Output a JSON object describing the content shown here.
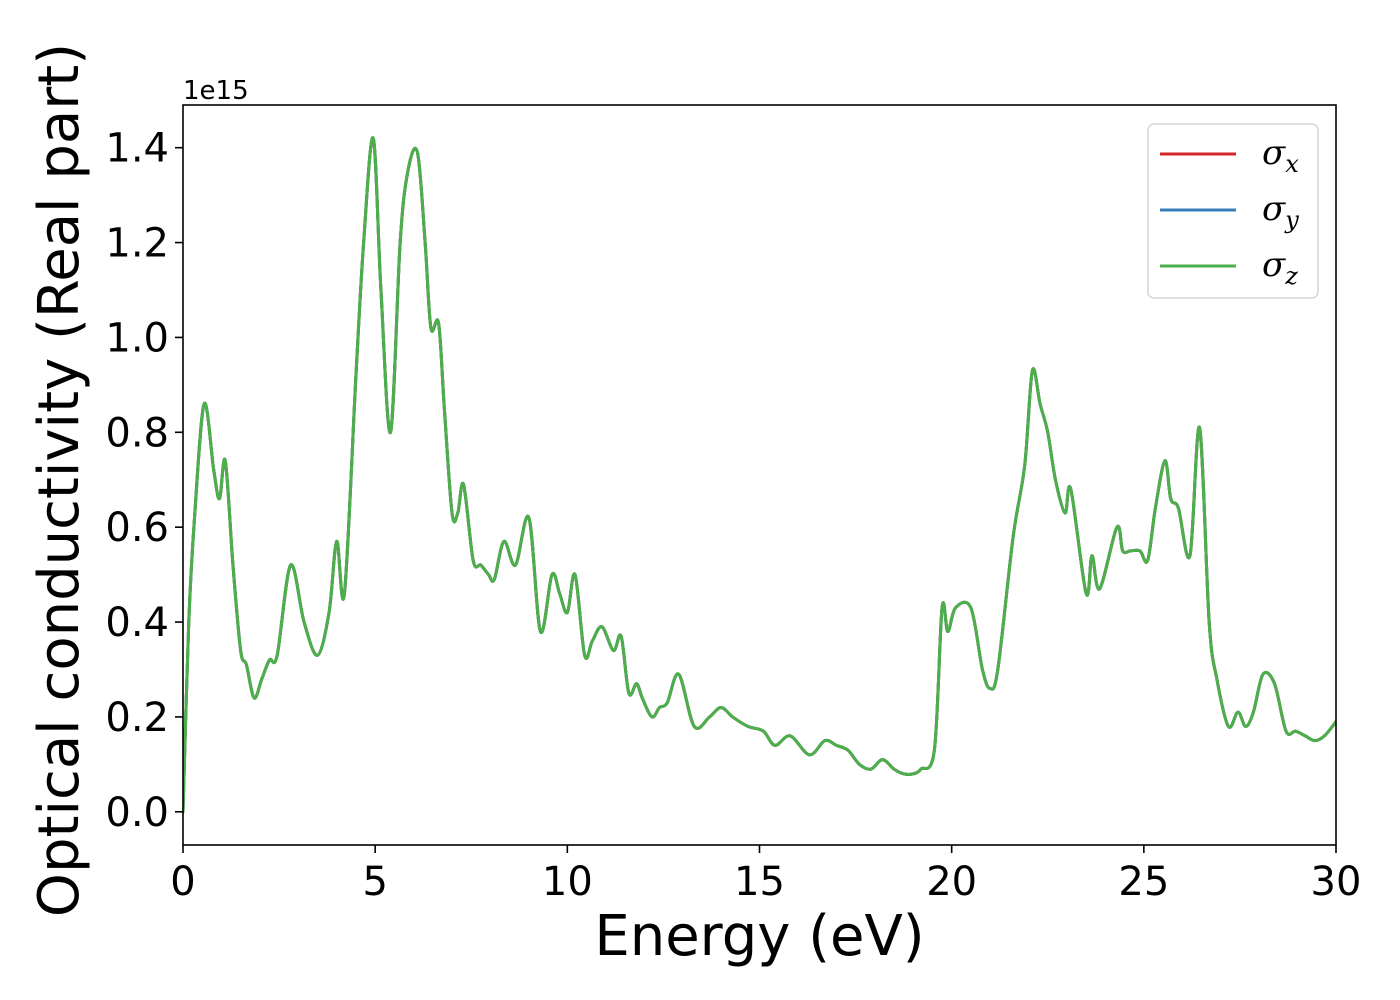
{
  "chart_data": {
    "type": "line",
    "xlabel": "Energy (eV)",
    "ylabel": "Optical conductivity (Real part)",
    "y_offset_label": "1e15",
    "xlim": [
      0,
      30
    ],
    "ylim": [
      -0.07,
      1.49
    ],
    "x_ticks": [
      0,
      5,
      10,
      15,
      20,
      25,
      30
    ],
    "y_ticks": [
      0.0,
      0.2,
      0.4,
      0.6,
      0.8,
      1.0,
      1.2,
      1.4
    ],
    "y_tick_labels": [
      "0.0",
      "0.2",
      "0.4",
      "0.6",
      "0.8",
      "1.0",
      "1.2",
      "1.4"
    ],
    "grid": false,
    "legend_position": "top-right",
    "x": [
      0,
      0.15,
      0.3,
      0.55,
      0.8,
      0.95,
      1.1,
      1.3,
      1.5,
      1.65,
      1.85,
      2.05,
      2.25,
      2.45,
      2.8,
      3.15,
      3.5,
      3.8,
      4.0,
      4.2,
      4.5,
      4.7,
      4.95,
      5.15,
      5.4,
      5.65,
      5.85,
      6.1,
      6.3,
      6.45,
      6.65,
      6.8,
      7.0,
      7.15,
      7.3,
      7.55,
      7.75,
      7.95,
      8.1,
      8.35,
      8.65,
      9.0,
      9.3,
      9.6,
      9.8,
      10.0,
      10.2,
      10.45,
      10.65,
      10.9,
      11.2,
      11.4,
      11.6,
      11.8,
      11.95,
      12.2,
      12.4,
      12.6,
      12.9,
      13.3,
      13.7,
      14.0,
      14.3,
      14.7,
      15.1,
      15.4,
      15.8,
      16.3,
      16.7,
      17.0,
      17.3,
      17.6,
      17.9,
      18.2,
      18.5,
      18.75,
      19.0,
      19.2,
      19.55,
      19.75,
      19.9,
      20.1,
      20.5,
      20.8,
      21.0,
      21.2,
      21.6,
      21.9,
      22.1,
      22.3,
      22.5,
      22.7,
      22.95,
      23.1,
      23.5,
      23.65,
      23.85,
      24.3,
      24.45,
      24.65,
      24.9,
      25.1,
      25.3,
      25.55,
      25.7,
      25.9,
      26.2,
      26.45,
      26.7,
      26.9,
      27.2,
      27.45,
      27.65,
      27.85,
      28.1,
      28.4,
      28.7,
      28.95,
      29.2,
      29.45,
      29.7,
      30.0
    ],
    "series": [
      {
        "name": "σ_x",
        "color": "#d62728",
        "values": [
          0.0,
          0.4,
          0.62,
          0.86,
          0.72,
          0.66,
          0.74,
          0.52,
          0.34,
          0.31,
          0.24,
          0.28,
          0.32,
          0.33,
          0.52,
          0.4,
          0.33,
          0.42,
          0.57,
          0.46,
          0.92,
          1.2,
          1.42,
          1.1,
          0.8,
          1.2,
          1.35,
          1.39,
          1.2,
          1.02,
          1.03,
          0.85,
          0.63,
          0.63,
          0.69,
          0.53,
          0.52,
          0.5,
          0.49,
          0.57,
          0.52,
          0.62,
          0.38,
          0.5,
          0.46,
          0.42,
          0.5,
          0.33,
          0.36,
          0.39,
          0.34,
          0.37,
          0.25,
          0.27,
          0.24,
          0.2,
          0.22,
          0.23,
          0.29,
          0.18,
          0.2,
          0.22,
          0.2,
          0.18,
          0.17,
          0.14,
          0.16,
          0.12,
          0.15,
          0.14,
          0.13,
          0.1,
          0.09,
          0.11,
          0.09,
          0.08,
          0.08,
          0.09,
          0.13,
          0.43,
          0.38,
          0.43,
          0.43,
          0.3,
          0.26,
          0.3,
          0.58,
          0.73,
          0.93,
          0.86,
          0.8,
          0.7,
          0.63,
          0.68,
          0.46,
          0.54,
          0.47,
          0.6,
          0.55,
          0.55,
          0.55,
          0.53,
          0.64,
          0.74,
          0.66,
          0.64,
          0.54,
          0.81,
          0.4,
          0.28,
          0.18,
          0.21,
          0.18,
          0.21,
          0.29,
          0.27,
          0.17,
          0.17,
          0.16,
          0.15,
          0.16,
          0.19
        ]
      },
      {
        "name": "σ_y",
        "color": "#377eb8",
        "values": [
          0.0,
          0.4,
          0.62,
          0.86,
          0.72,
          0.66,
          0.74,
          0.52,
          0.34,
          0.31,
          0.24,
          0.28,
          0.32,
          0.33,
          0.52,
          0.4,
          0.33,
          0.42,
          0.57,
          0.46,
          0.92,
          1.2,
          1.42,
          1.1,
          0.8,
          1.2,
          1.35,
          1.39,
          1.2,
          1.02,
          1.03,
          0.85,
          0.63,
          0.63,
          0.69,
          0.53,
          0.52,
          0.5,
          0.49,
          0.57,
          0.52,
          0.62,
          0.38,
          0.5,
          0.46,
          0.42,
          0.5,
          0.33,
          0.36,
          0.39,
          0.34,
          0.37,
          0.25,
          0.27,
          0.24,
          0.2,
          0.22,
          0.23,
          0.29,
          0.18,
          0.2,
          0.22,
          0.2,
          0.18,
          0.17,
          0.14,
          0.16,
          0.12,
          0.15,
          0.14,
          0.13,
          0.1,
          0.09,
          0.11,
          0.09,
          0.08,
          0.08,
          0.09,
          0.13,
          0.43,
          0.38,
          0.43,
          0.43,
          0.3,
          0.26,
          0.3,
          0.58,
          0.73,
          0.93,
          0.86,
          0.8,
          0.7,
          0.63,
          0.68,
          0.46,
          0.54,
          0.47,
          0.6,
          0.55,
          0.55,
          0.55,
          0.53,
          0.64,
          0.74,
          0.66,
          0.64,
          0.54,
          0.81,
          0.4,
          0.28,
          0.18,
          0.21,
          0.18,
          0.21,
          0.29,
          0.27,
          0.17,
          0.17,
          0.16,
          0.15,
          0.16,
          0.19
        ]
      },
      {
        "name": "σ_z",
        "color": "#4daf4a",
        "values": [
          0.0,
          0.4,
          0.62,
          0.86,
          0.72,
          0.66,
          0.74,
          0.52,
          0.34,
          0.31,
          0.24,
          0.28,
          0.32,
          0.33,
          0.52,
          0.4,
          0.33,
          0.42,
          0.57,
          0.46,
          0.92,
          1.2,
          1.42,
          1.1,
          0.8,
          1.2,
          1.35,
          1.39,
          1.2,
          1.02,
          1.03,
          0.85,
          0.63,
          0.63,
          0.69,
          0.53,
          0.52,
          0.5,
          0.49,
          0.57,
          0.52,
          0.62,
          0.38,
          0.5,
          0.46,
          0.42,
          0.5,
          0.33,
          0.36,
          0.39,
          0.34,
          0.37,
          0.25,
          0.27,
          0.24,
          0.2,
          0.22,
          0.23,
          0.29,
          0.18,
          0.2,
          0.22,
          0.2,
          0.18,
          0.17,
          0.14,
          0.16,
          0.12,
          0.15,
          0.14,
          0.13,
          0.1,
          0.09,
          0.11,
          0.09,
          0.08,
          0.08,
          0.09,
          0.13,
          0.43,
          0.38,
          0.43,
          0.43,
          0.3,
          0.26,
          0.3,
          0.58,
          0.73,
          0.93,
          0.86,
          0.8,
          0.7,
          0.63,
          0.68,
          0.46,
          0.54,
          0.47,
          0.6,
          0.55,
          0.55,
          0.55,
          0.53,
          0.64,
          0.74,
          0.66,
          0.64,
          0.54,
          0.81,
          0.4,
          0.28,
          0.18,
          0.21,
          0.18,
          0.21,
          0.29,
          0.27,
          0.17,
          0.17,
          0.16,
          0.15,
          0.16,
          0.19
        ]
      }
    ],
    "legend": [
      {
        "symbol": "σ",
        "sub": "x",
        "color": "#d62728"
      },
      {
        "symbol": "σ",
        "sub": "y",
        "color": "#377eb8"
      },
      {
        "symbol": "σ",
        "sub": "z",
        "color": "#4daf4a"
      }
    ]
  }
}
